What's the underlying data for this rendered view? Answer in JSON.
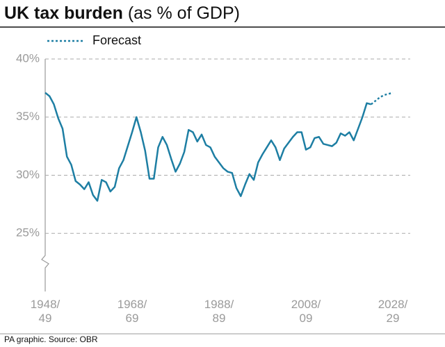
{
  "chart_data": {
    "type": "line",
    "title": "UK tax burden",
    "subtitle": "(as % of GDP)",
    "source": "PA graphic. Source: OBR",
    "x": [
      1948,
      1949,
      1950,
      1951,
      1952,
      1953,
      1954,
      1955,
      1956,
      1957,
      1958,
      1959,
      1960,
      1961,
      1962,
      1963,
      1964,
      1965,
      1966,
      1967,
      1968,
      1969,
      1970,
      1971,
      1972,
      1973,
      1974,
      1975,
      1976,
      1977,
      1978,
      1979,
      1980,
      1981,
      1982,
      1983,
      1984,
      1985,
      1986,
      1987,
      1988,
      1989,
      1990,
      1991,
      1992,
      1993,
      1994,
      1995,
      1996,
      1997,
      1998,
      1999,
      2000,
      2001,
      2002,
      2003,
      2004,
      2005,
      2006,
      2007,
      2008,
      2009,
      2010,
      2011,
      2012,
      2013,
      2014,
      2015,
      2016,
      2017,
      2018,
      2019,
      2020,
      2021,
      2022,
      2023,
      2024,
      2025,
      2026,
      2027,
      2028
    ],
    "series": [
      {
        "color": "#1d7ea3",
        "style": "solid",
        "values": [
          37.1,
          36.8,
          36.1,
          34.9,
          34.0,
          31.6,
          30.9,
          29.5,
          29.2,
          28.8,
          29.4,
          28.3,
          27.8,
          29.6,
          29.4,
          28.6,
          29.0,
          30.6,
          31.3,
          32.5,
          33.7,
          35.0,
          33.7,
          32.1,
          29.7,
          29.7,
          32.4,
          33.3,
          32.6,
          31.4,
          30.3,
          31.0,
          32.0,
          33.9,
          33.7,
          32.9,
          33.5,
          32.6,
          32.4,
          31.6,
          31.1,
          30.6,
          30.3,
          30.2,
          28.9,
          28.2,
          29.2,
          30.1,
          29.6,
          31.1,
          31.8,
          32.4,
          33.0,
          32.4,
          31.3,
          32.3,
          32.8,
          33.3,
          33.7,
          33.7,
          32.2,
          32.4,
          33.2,
          33.3,
          32.7,
          32.6,
          32.5,
          32.8,
          33.6,
          33.4,
          33.7,
          33.0,
          34.0,
          35.0,
          36.2,
          36.1,
          null,
          null,
          null,
          null,
          null
        ]
      },
      {
        "name": "Forecast",
        "color": "#1d7ea3",
        "style": "dotted",
        "values": [
          null,
          null,
          null,
          null,
          null,
          null,
          null,
          null,
          null,
          null,
          null,
          null,
          null,
          null,
          null,
          null,
          null,
          null,
          null,
          null,
          null,
          null,
          null,
          null,
          null,
          null,
          null,
          null,
          null,
          null,
          null,
          null,
          null,
          null,
          null,
          null,
          null,
          null,
          null,
          null,
          null,
          null,
          null,
          null,
          null,
          null,
          null,
          null,
          null,
          null,
          null,
          null,
          null,
          null,
          null,
          null,
          null,
          null,
          null,
          null,
          null,
          null,
          null,
          null,
          null,
          null,
          null,
          null,
          null,
          null,
          null,
          null,
          null,
          null,
          null,
          36.1,
          36.4,
          36.7,
          36.9,
          37.0,
          37.1
        ]
      }
    ],
    "xlim": [
      1948,
      2028
    ],
    "xticks": [
      {
        "value": 1948,
        "label": [
          "1948/",
          "49"
        ]
      },
      {
        "value": 1968,
        "label": [
          "1968/",
          "69"
        ]
      },
      {
        "value": 1988,
        "label": [
          "1988/",
          "89"
        ]
      },
      {
        "value": 2008,
        "label": [
          "2008/",
          "09"
        ]
      },
      {
        "value": 2028,
        "label": [
          "2028/",
          "29"
        ]
      }
    ],
    "ylim": [
      20,
      40
    ],
    "yticks": [
      {
        "value": 25,
        "label": "25%"
      },
      {
        "value": 30,
        "label": "30%"
      },
      {
        "value": 35,
        "label": "35%"
      },
      {
        "value": 40,
        "label": "40%"
      }
    ],
    "grid": true
  }
}
